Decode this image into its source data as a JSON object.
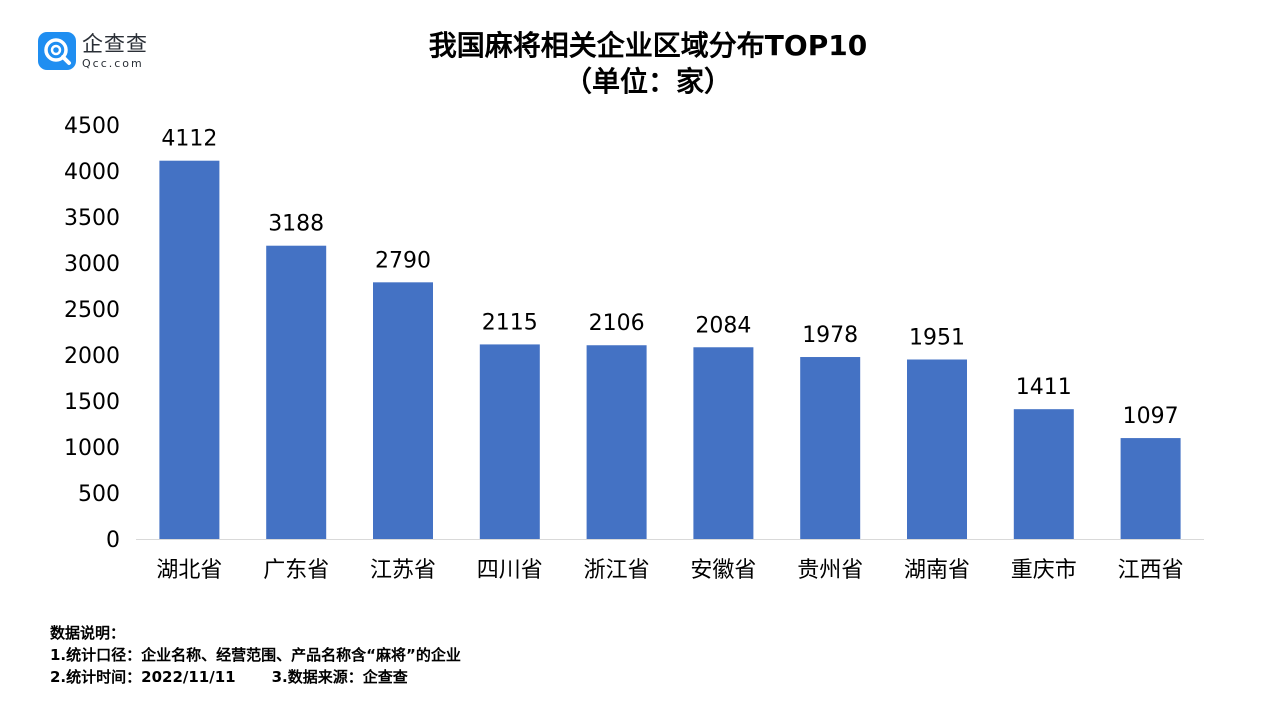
{
  "logo": {
    "name": "企查查",
    "domain": "Qcc.com"
  },
  "title_line1": "我国麻将相关企业区域分布TOP10",
  "title_line2": "（单位：家）",
  "colors": {
    "bar": "#4472c4",
    "axis": "#d9d9d9",
    "logo": "#1f8ef1"
  },
  "chart_data": {
    "type": "bar",
    "title": "我国麻将相关企业区域分布TOP10 （单位：家）",
    "categories": [
      "湖北省",
      "广东省",
      "江苏省",
      "四川省",
      "浙江省",
      "安徽省",
      "贵州省",
      "湖南省",
      "重庆市",
      "江西省"
    ],
    "values": [
      4112,
      3188,
      2790,
      2115,
      2106,
      2084,
      1978,
      1951,
      1411,
      1097
    ],
    "ylim": [
      0,
      4500
    ],
    "yticks": [
      0,
      500,
      1000,
      1500,
      2000,
      2500,
      3000,
      3500,
      4000,
      4500
    ],
    "grid": false,
    "data_labels": true
  },
  "notes": {
    "heading": "数据说明：",
    "line1": "1.统计口径：企业名称、经营范围、产品名称含“麻将”的企业",
    "line2a": "2.统计时间：2022/11/11",
    "line2b": "3.数据来源：企查查"
  }
}
